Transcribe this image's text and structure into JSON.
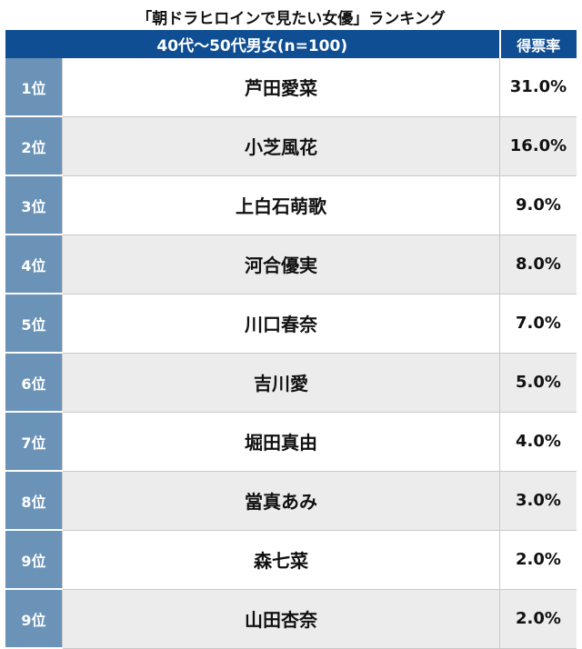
{
  "title": "「朝ドラヒロインで見たい女優」ランキング",
  "header": {
    "group": "40代〜50代男女(n=100)",
    "rate": "得票率"
  },
  "rows": [
    {
      "rank": "1位",
      "name": "芦田愛菜",
      "pct": "31.0%"
    },
    {
      "rank": "2位",
      "name": "小芝風花",
      "pct": "16.0%"
    },
    {
      "rank": "3位",
      "name": "上白石萌歌",
      "pct": "9.0%"
    },
    {
      "rank": "4位",
      "name": "河合優実",
      "pct": "8.0%"
    },
    {
      "rank": "5位",
      "name": "川口春奈",
      "pct": "7.0%"
    },
    {
      "rank": "6位",
      "name": "吉川愛",
      "pct": "5.0%"
    },
    {
      "rank": "7位",
      "name": "堀田真由",
      "pct": "4.0%"
    },
    {
      "rank": "8位",
      "name": "當真あみ",
      "pct": "3.0%"
    },
    {
      "rank": "9位",
      "name": "森七菜",
      "pct": "2.0%"
    },
    {
      "rank": "9位",
      "name": "山田杏奈",
      "pct": "2.0%"
    }
  ],
  "colors": {
    "header_bg": "#0f4e93",
    "rank_bg": "#6b93b8",
    "alt_row_bg": "#ececec"
  }
}
